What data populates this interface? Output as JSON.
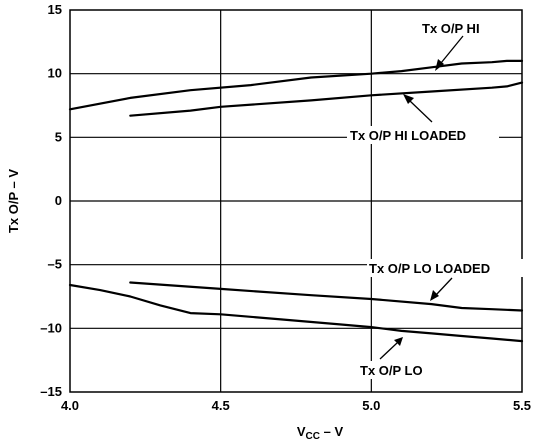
{
  "chart_data": {
    "type": "line",
    "xlabel_main": "V",
    "xlabel_sub": "CC",
    "xlabel_suffix": " – V",
    "ylabel": "Tx O/P – V",
    "xlim": [
      4.0,
      5.5
    ],
    "ylim": [
      -15,
      15
    ],
    "grid": true,
    "x_ticks": [
      4.0,
      4.5,
      5.0,
      5.5
    ],
    "x_tick_labels": [
      "4.0",
      "4.5",
      "5.0",
      "5.5"
    ],
    "y_ticks": [
      15,
      10,
      5,
      0,
      -5,
      -10,
      -15
    ],
    "y_tick_labels": [
      "15",
      "10",
      "5",
      "0",
      "–5",
      "–10",
      "–15"
    ],
    "series": [
      {
        "name": "Tx O/P HI",
        "x": [
          4.0,
          4.2,
          4.4,
          4.6,
          4.8,
          5.0,
          5.1,
          5.2,
          5.3,
          5.4,
          5.45,
          5.5
        ],
        "y": [
          7.2,
          8.1,
          8.7,
          9.1,
          9.7,
          10.0,
          10.2,
          10.5,
          10.8,
          10.9,
          11.0,
          11.0
        ]
      },
      {
        "name": "Tx O/P HI LOADED",
        "x": [
          4.2,
          4.4,
          4.5,
          4.8,
          5.0,
          5.2,
          5.4,
          5.45,
          5.5
        ],
        "y": [
          6.7,
          7.1,
          7.4,
          7.9,
          8.3,
          8.6,
          8.9,
          9.0,
          9.3
        ]
      },
      {
        "name": "Tx O/P LO LOADED",
        "x": [
          4.2,
          4.5,
          4.8,
          5.0,
          5.2,
          5.3,
          5.4,
          5.5
        ],
        "y": [
          -6.4,
          -6.9,
          -7.4,
          -7.7,
          -8.1,
          -8.4,
          -8.5,
          -8.6
        ]
      },
      {
        "name": "Tx O/P LO",
        "x": [
          4.0,
          4.1,
          4.2,
          4.3,
          4.4,
          4.5,
          4.7,
          4.9,
          5.0,
          5.1,
          5.2,
          5.3,
          5.4,
          5.5
        ],
        "y": [
          -6.6,
          -7.0,
          -7.5,
          -8.2,
          -8.8,
          -8.9,
          -9.3,
          -9.7,
          -9.9,
          -10.2,
          -10.4,
          -10.6,
          -10.8,
          -11.0
        ]
      }
    ],
    "annotations": [
      {
        "text": "Tx O/P HI",
        "target_series": 0
      },
      {
        "text": "Tx O/P HI LOADED",
        "target_series": 1
      },
      {
        "text": "Tx O/P LO LOADED",
        "target_series": 2
      },
      {
        "text": "Tx O/P LO",
        "target_series": 3
      }
    ]
  }
}
